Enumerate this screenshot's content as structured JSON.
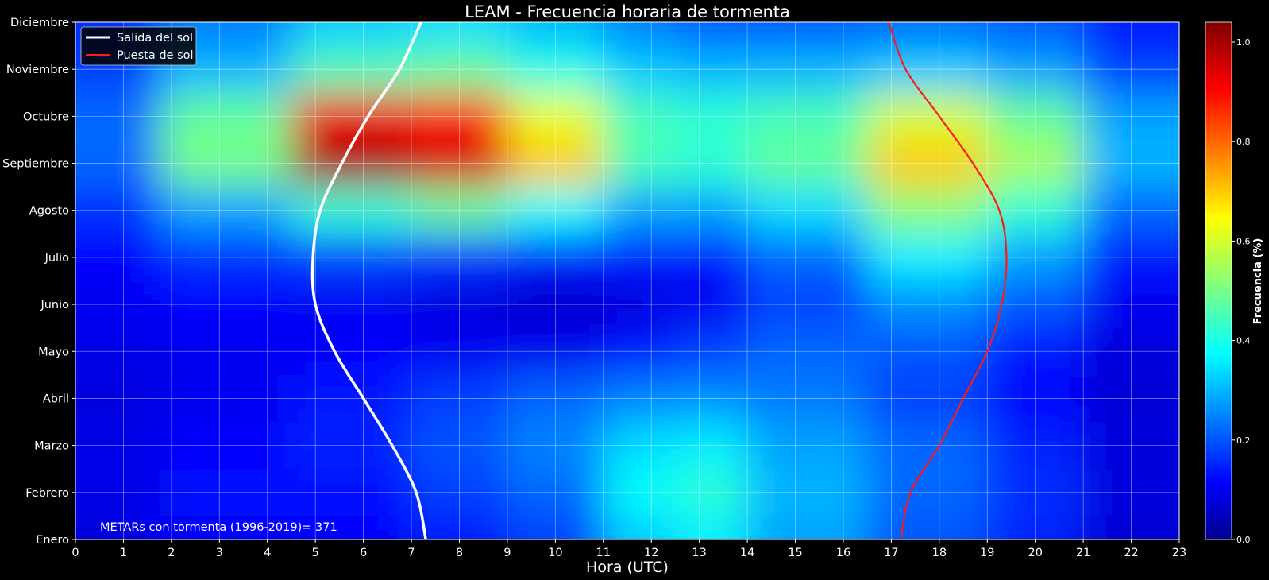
{
  "chart_data": {
    "type": "heatmap",
    "title": "LEAM - Frecuencia horaria de tormenta",
    "xlabel": "Hora (UTC)",
    "ylabel": "",
    "x_ticks": [
      "0",
      "1",
      "2",
      "3",
      "4",
      "5",
      "6",
      "7",
      "8",
      "9",
      "10",
      "11",
      "12",
      "13",
      "14",
      "15",
      "16",
      "17",
      "18",
      "19",
      "20",
      "21",
      "22",
      "23"
    ],
    "xlim": [
      0,
      23
    ],
    "y_categories": [
      "Enero",
      "Febrero",
      "Marzo",
      "Abril",
      "Mayo",
      "Junio",
      "Julio",
      "Agosto",
      "Septiembre",
      "Octubre",
      "Noviembre",
      "Diciembre"
    ],
    "grid": true,
    "colormap": "jet",
    "colorbar": {
      "label": "Frecuencia (%)",
      "range": [
        0,
        1.04
      ],
      "ticks": [
        "0.0",
        "0.2",
        "0.4",
        "0.6",
        "0.8",
        "1.0"
      ]
    },
    "values_description_hours": [
      0.5,
      3,
      6,
      8,
      10,
      12,
      13,
      15,
      18,
      20,
      22
    ],
    "values": [
      [
        0.08,
        0.12,
        0.12,
        0.14,
        0.18,
        0.32,
        0.36,
        0.28,
        0.2,
        0.15,
        0.07
      ],
      [
        0.09,
        0.13,
        0.13,
        0.18,
        0.22,
        0.38,
        0.42,
        0.3,
        0.22,
        0.16,
        0.08
      ],
      [
        0.09,
        0.12,
        0.15,
        0.2,
        0.25,
        0.34,
        0.36,
        0.28,
        0.22,
        0.15,
        0.08
      ],
      [
        0.08,
        0.1,
        0.14,
        0.18,
        0.22,
        0.25,
        0.26,
        0.24,
        0.18,
        0.12,
        0.07
      ],
      [
        0.09,
        0.1,
        0.12,
        0.1,
        0.1,
        0.14,
        0.18,
        0.22,
        0.2,
        0.14,
        0.08
      ],
      [
        0.1,
        0.12,
        0.1,
        0.08,
        0.06,
        0.08,
        0.1,
        0.18,
        0.26,
        0.2,
        0.1
      ],
      [
        0.12,
        0.16,
        0.18,
        0.16,
        0.14,
        0.14,
        0.14,
        0.22,
        0.36,
        0.28,
        0.14
      ],
      [
        0.16,
        0.28,
        0.42,
        0.48,
        0.38,
        0.28,
        0.28,
        0.34,
        0.52,
        0.42,
        0.22
      ],
      [
        0.22,
        0.5,
        1.0,
        0.95,
        0.7,
        0.45,
        0.42,
        0.48,
        0.7,
        0.55,
        0.3
      ],
      [
        0.22,
        0.48,
        0.92,
        0.88,
        0.62,
        0.45,
        0.42,
        0.45,
        0.6,
        0.48,
        0.28
      ],
      [
        0.18,
        0.3,
        0.45,
        0.48,
        0.4,
        0.32,
        0.3,
        0.3,
        0.32,
        0.28,
        0.18
      ],
      [
        0.16,
        0.24,
        0.32,
        0.34,
        0.3,
        0.24,
        0.2,
        0.2,
        0.22,
        0.2,
        0.14
      ]
    ],
    "series": [
      {
        "name": "Salida del sol",
        "color": "#ffffff",
        "x": [
          7.3,
          7.1,
          6.6,
          6.0,
          5.4,
          5.0,
          4.95,
          5.1,
          5.55,
          6.1,
          6.75,
          7.2
        ],
        "y": [
          0,
          1,
          2,
          3,
          4,
          5,
          6,
          7,
          8,
          9,
          10,
          11
        ]
      },
      {
        "name": "Puesta de sol",
        "color": "#ff1a1a",
        "x": [
          17.2,
          17.4,
          18.0,
          18.5,
          19.0,
          19.3,
          19.4,
          19.25,
          18.7,
          18.0,
          17.3,
          16.95
        ],
        "y": [
          0,
          1,
          2,
          3,
          4,
          5,
          6,
          7,
          8,
          9,
          10,
          11
        ]
      }
    ],
    "legend": {
      "placement": "top-left"
    },
    "annotations": [
      "METARs con tormenta (1996-2019)= 371"
    ]
  }
}
